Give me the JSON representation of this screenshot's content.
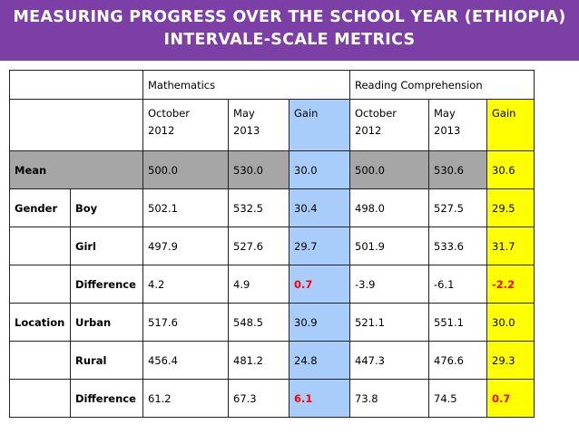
{
  "banner": {
    "line1": "MEASURING PROGRESS OVER THE SCHOOL YEAR (ETHIOPIA)",
    "line2": "INTERVALE-SCALE METRICS",
    "background": "#7b3fa6"
  },
  "table": {
    "groups": [
      "Mathematics",
      "Reading Comprehension"
    ],
    "columns": [
      {
        "line1": "October",
        "line2": "2012"
      },
      {
        "line1": "May",
        "line2": "2013"
      },
      {
        "line1": "Gain",
        "line2": ""
      },
      {
        "line1": "October",
        "line2": "2012"
      },
      {
        "line1": "May",
        "line2": "2013"
      },
      {
        "line1": "Gain",
        "line2": ""
      }
    ],
    "mean": {
      "label": "Mean",
      "values": [
        "500.0",
        "530.0",
        "30.0",
        "500.0",
        "530.6",
        "30.6"
      ]
    },
    "gender": {
      "label": "Gender",
      "rows": [
        {
          "label": "Boy",
          "values": [
            "502.1",
            "532.5",
            "30.4",
            "498.0",
            "527.5",
            "29.5"
          ]
        },
        {
          "label": "Girl",
          "values": [
            "497.9",
            "527.6",
            "29.7",
            "501.9",
            "533.6",
            "31.7"
          ]
        },
        {
          "label": "Difference",
          "values": [
            "4.2",
            "4.9",
            "0.7",
            "-3.9",
            "-6.1",
            "-2.2"
          ]
        }
      ]
    },
    "location": {
      "label": "Location",
      "rows": [
        {
          "label": "Urban",
          "values": [
            "517.6",
            "548.5",
            "30.9",
            "521.1",
            "551.1",
            "30.0"
          ]
        },
        {
          "label": "Rural",
          "values": [
            "456.4",
            "481.2",
            "24.8",
            "447.3",
            "476.6",
            "29.3"
          ]
        },
        {
          "label": "Difference",
          "values": [
            "61.2",
            "67.3",
            "6.1",
            "73.8",
            "74.5",
            "0.7"
          ]
        }
      ]
    },
    "colors": {
      "math_gain_fill": "#a9cdfb",
      "reading_gain_fill": "#ffff00",
      "mean_row_fill": "#a6a6a6",
      "highlight_text": "#ff0000"
    }
  }
}
